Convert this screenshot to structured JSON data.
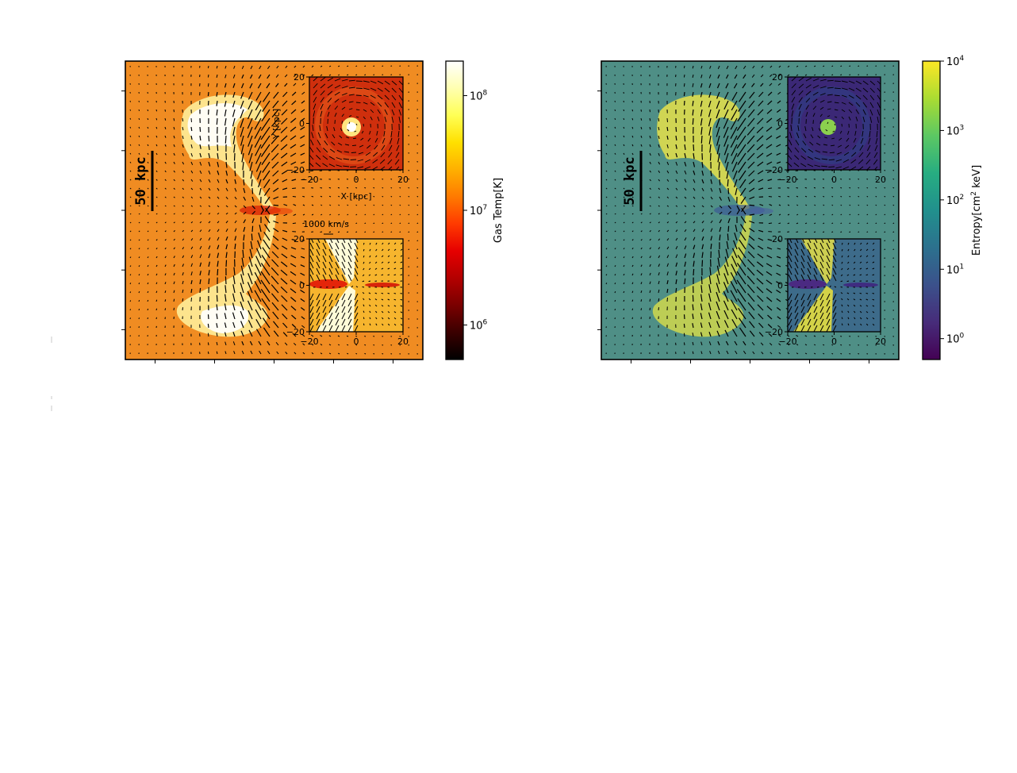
{
  "chart_data": [
    {
      "type": "heatmap",
      "panel": "temperature",
      "quantity": "Gas Temp[K]",
      "colorbar": {
        "label": "Gas Temp[K]",
        "scale": "log",
        "range": [
          500000,
          200000000
        ],
        "ticks": [
          {
            "base": "10",
            "exp": "6",
            "value": 1000000
          },
          {
            "base": "10",
            "exp": "7",
            "value": 10000000
          },
          {
            "base": "10",
            "exp": "8",
            "value": 100000000
          }
        ],
        "colormap": [
          "#000000",
          "#3a0000",
          "#7a0000",
          "#b30000",
          "#e60000",
          "#ff3a00",
          "#ff7a00",
          "#ffb000",
          "#ffe000",
          "#ffff55",
          "#ffffb0",
          "#ffffff"
        ]
      },
      "background_color": "#f08c22",
      "scalebar_label": "50  kpc",
      "velocity_reference": "1000 km/s",
      "insets": [
        {
          "view": "face-on",
          "xlabel": "X [kpc]",
          "ylabel": "Y [kpc]",
          "xlim": [
            -20,
            20
          ],
          "ylim": [
            -20,
            20
          ],
          "xticks": [
            "−20",
            "0",
            "20"
          ],
          "yticks": [
            "20",
            "0",
            "−20"
          ],
          "background_color": "#d23a12"
        },
        {
          "view": "edge-on",
          "xlim": [
            -20,
            20
          ],
          "ylim": [
            -20,
            20
          ],
          "xticks": [
            "−20",
            "0",
            "20"
          ],
          "yticks": [
            "20",
            "0",
            "−20"
          ],
          "background_color": "#f5b830"
        }
      ]
    },
    {
      "type": "heatmap",
      "panel": "entropy",
      "quantity": "Entropy[cm² keV]",
      "colorbar": {
        "label_prefix": "Entropy[cm",
        "label_sup": "2",
        "label_suffix": " keV]",
        "scale": "log",
        "range": [
          0.5,
          10000
        ],
        "ticks": [
          {
            "base": "10",
            "exp": "0",
            "value": 1
          },
          {
            "base": "10",
            "exp": "1",
            "value": 10
          },
          {
            "base": "10",
            "exp": "2",
            "value": 100
          },
          {
            "base": "10",
            "exp": "3",
            "value": 1000
          },
          {
            "base": "10",
            "exp": "4",
            "value": 10000
          }
        ],
        "colormap": [
          "#440154",
          "#472c7a",
          "#3b518b",
          "#2c718e",
          "#21908d",
          "#27ad81",
          "#5cc863",
          "#aadc32",
          "#fde725"
        ]
      },
      "background_color": "#4f8f86",
      "scalebar_label": "50  kpc",
      "insets": [
        {
          "view": "face-on",
          "xlim": [
            -20,
            20
          ],
          "ylim": [
            -20,
            20
          ],
          "xticks": [
            "−20",
            "0",
            "20"
          ],
          "yticks": [
            "20",
            "0",
            "−20"
          ],
          "background_color": "#3d2a78"
        },
        {
          "view": "edge-on",
          "xlim": [
            -20,
            20
          ],
          "ylim": [
            -20,
            20
          ],
          "xticks": [
            "−20",
            "0",
            "20"
          ],
          "yticks": [
            "20",
            "0",
            "−20"
          ],
          "background_color": "#3f6e8c"
        }
      ]
    }
  ]
}
